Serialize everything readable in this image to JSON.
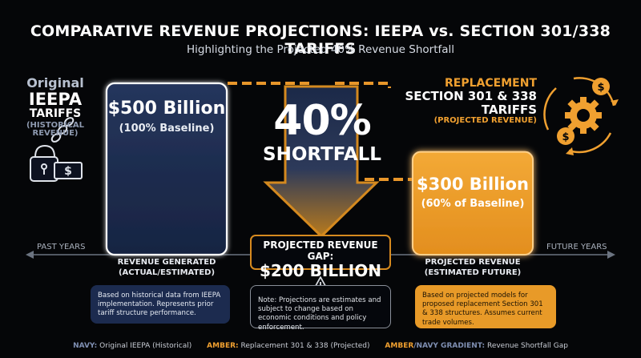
{
  "title": "COMPARATIVE REVENUE PROJECTIONS: IEEPA vs. SECTION 301/338 TARIFFS",
  "subtitle": "Highlighting the Projected 40% Revenue Shortfall",
  "left_label": {
    "line1": "Original",
    "line2": "IEEPA",
    "line3": "TARIFFS",
    "line4": "(HISTORICAL REVENUE)"
  },
  "right_label": {
    "line1": "REPLACEMENT",
    "line2": "SECTION 301 & 338",
    "line3": "TARIFFS",
    "line4": "(PROJECTED REVENUE)"
  },
  "chart_data": {
    "type": "bar",
    "categories": [
      "Original IEEPA Tariffs",
      "Replacement Section 301 & 338 Tariffs"
    ],
    "values": [
      500,
      300
    ],
    "unit": "Billion",
    "bar_labels": [
      {
        "value": "$500 Billion",
        "sub": "(100% Baseline)"
      },
      {
        "value": "$300 Billion",
        "sub": "(60% of Baseline)"
      }
    ],
    "colors": {
      "navy": "#1c2b4f",
      "amber": "#f0a030"
    },
    "shortfall": {
      "percent": "40%",
      "word": "SHORTFALL"
    },
    "gap": {
      "label": "PROJECTED REVENUE GAP:",
      "value": "$200 BILLION"
    },
    "axis": {
      "past": "PAST YEARS",
      "future": "FUTURE YEARS"
    },
    "bar_captions": [
      {
        "line1": "REVENUE GENERATED",
        "line2": "(ACTUAL/ESTIMATED)"
      },
      {
        "line1": "PROJECTED REVENUE",
        "line2": "(ESTIMATED FUTURE)"
      }
    ]
  },
  "notes": {
    "left": "Based on historical data from IEEPA implementation. Represents prior tariff structure performance.",
    "middle": "Note: Projections are estimates and subject to change based on economic conditions and policy enforcement.",
    "right": "Based on projected models for proposed replacement Section 301 & 338 structures. Assumes current trade volumes."
  },
  "legend": [
    {
      "key": "NAVY:",
      "text": "Original IEEPA (Historical)"
    },
    {
      "key": "AMBER:",
      "text": "Replacement 301 & 338 (Projected)"
    },
    {
      "key1": "AMBER",
      "key2": "/NAVY GRADIENT:",
      "text": "Revenue Shortfall Gap"
    }
  ],
  "icons": {
    "left": "lock-chain-money-icon",
    "right": "gear-dollar-cycle-icon",
    "warning": "warning-triangle-icon",
    "down_arrow": "down-arrow"
  }
}
